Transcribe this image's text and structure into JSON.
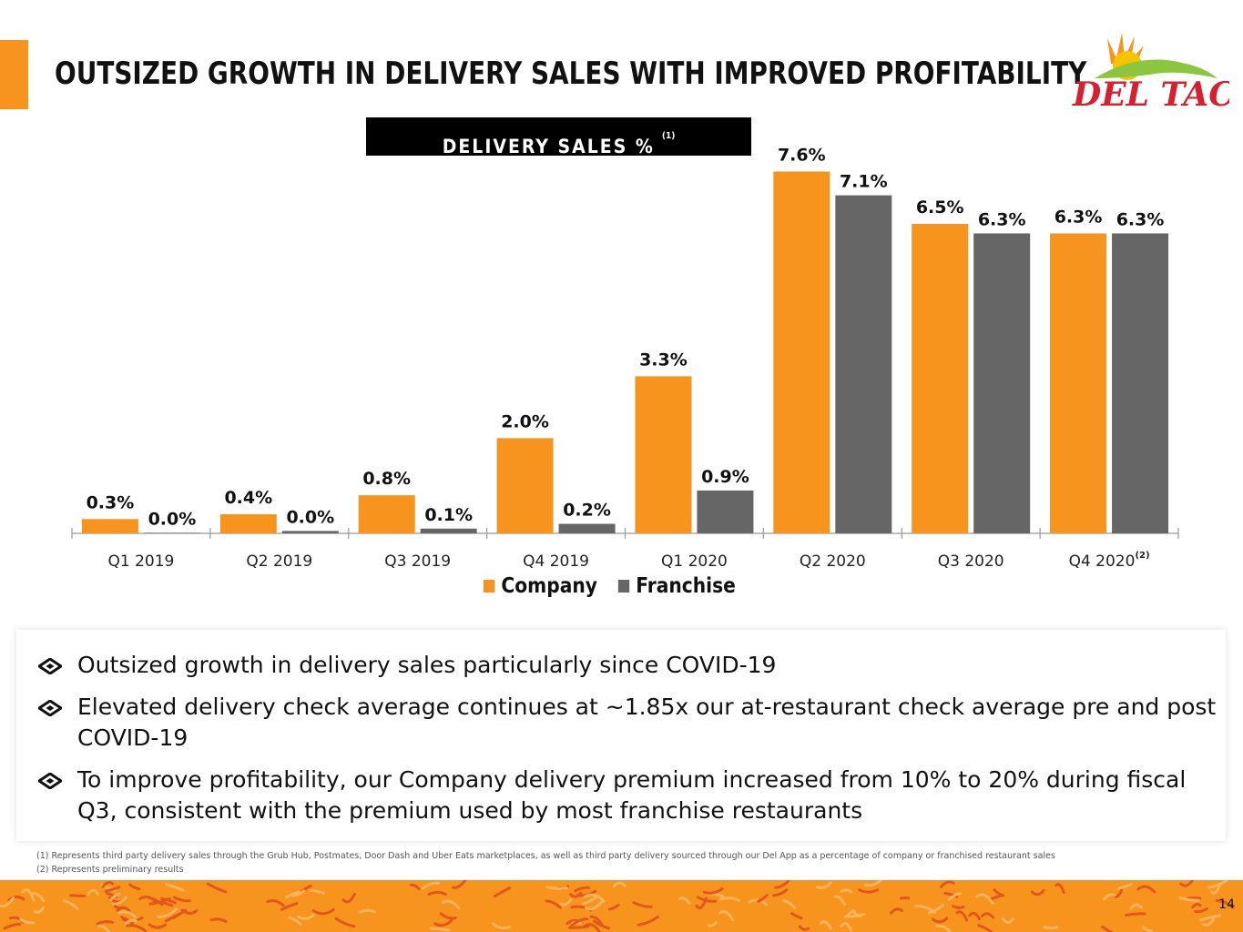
{
  "slide": {
    "title": "OUTSIZED GROWTH IN DELIVERY SALES WITH IMPROVED PROFITABILITY",
    "page_number": "14",
    "brand": {
      "logo_text": "DEL TACO",
      "red": "#d7202f",
      "orange": "#f7941d",
      "yellow": "#f5c400",
      "green": "#8cc63f"
    }
  },
  "chart_heading": {
    "label": "DELIVERY SALES %",
    "note": "(1)"
  },
  "chart_data": {
    "type": "bar",
    "title": "DELIVERY SALES %",
    "categories": [
      "Q1 2019",
      "Q2 2019",
      "Q3 2019",
      "Q4 2019",
      "Q1 2020",
      "Q2 2020",
      "Q3 2020",
      "Q4 2020"
    ],
    "category_notes": [
      "",
      "",
      "",
      "",
      "",
      "",
      "",
      "(2)"
    ],
    "series": [
      {
        "name": "Company",
        "color": "#f7941d",
        "values": [
          0.3,
          0.4,
          0.8,
          2.0,
          3.3,
          7.6,
          6.5,
          6.3
        ],
        "labels": [
          "0.3%",
          "0.4%",
          "0.8%",
          "2.0%",
          "3.3%",
          "7.6%",
          "6.5%",
          "6.3%"
        ]
      },
      {
        "name": "Franchise",
        "color": "#666666",
        "values": [
          0.0,
          0.05,
          0.1,
          0.2,
          0.9,
          7.1,
          6.3,
          6.3
        ],
        "labels": [
          "0.0%",
          "0.0%",
          "0.1%",
          "0.2%",
          "0.9%",
          "7.1%",
          "6.3%",
          "6.3%"
        ]
      }
    ],
    "xlabel": "",
    "ylabel": "",
    "ylim": [
      0,
      7.8
    ],
    "grid": false,
    "legend": "bottom-center"
  },
  "bullets": [
    "Outsized growth in delivery sales particularly since COVID-19",
    "Elevated delivery check average continues at ~1.85x our at-restaurant check average pre and post COVID-19",
    "To improve profitability, our Company delivery premium increased from 10% to 20% during fiscal Q3, consistent with the premium used by most franchise restaurants"
  ],
  "footnotes": [
    "(1)  Represents third party delivery sales through the Grub Hub, Postmates, Door Dash and Uber Eats marketplaces, as well as third party delivery sourced through our Del App as a percentage of company or franchised restaurant sales",
    "(2)  Represents preliminary results"
  ]
}
